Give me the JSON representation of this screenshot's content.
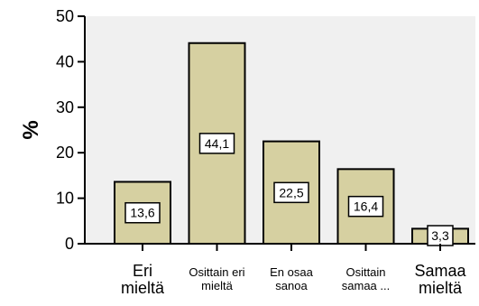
{
  "chart_data": {
    "type": "bar",
    "categories": [
      [
        "Eri",
        "mieltä"
      ],
      [
        "Osittain eri",
        "mieltä"
      ],
      [
        "En osaa",
        "sanoa"
      ],
      [
        "Osittain",
        "samaa ..."
      ],
      [
        "Samaa",
        "mieltä"
      ]
    ],
    "category_label_sizes": [
      "large",
      "small",
      "small",
      "small",
      "large"
    ],
    "values": [
      13.6,
      44.1,
      22.5,
      16.4,
      3.3
    ],
    "value_labels": [
      "13,6",
      "44,1",
      "22,5",
      "16,4",
      "3,3"
    ],
    "title": "",
    "xlabel": "",
    "ylabel": "%",
    "ylim": [
      0,
      50
    ],
    "yticks": [
      0,
      10,
      20,
      30,
      40,
      50
    ],
    "grid": false,
    "colors": {
      "plot_bg": "#f0f0f0",
      "bar_fill": "#d6d0a1",
      "bar_stroke": "#000000",
      "label_bg": "#ffffff"
    }
  }
}
